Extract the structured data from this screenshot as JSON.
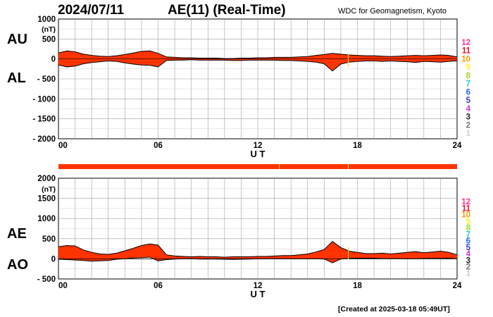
{
  "header": {
    "date": "2024/07/11",
    "title": "AE(11) (Real-Time)",
    "source": "WDC for Geomagnetism, Kyoto"
  },
  "footer": {
    "created": "[Created at 2025-03-18 05:49UT]"
  },
  "colors": {
    "fill": "#ff3300",
    "outline": "#000000",
    "grid": "#a0a0a0",
    "partial": "#ffcc33"
  },
  "station_count_scale": {
    "labels": [
      "12",
      "11",
      "10",
      "9",
      "8",
      "7",
      "6",
      "5",
      "4",
      "3",
      "2",
      "1"
    ],
    "colors": [
      "#ff3399",
      "#ee1133",
      "#ff9900",
      "#ffee33",
      "#99dd22",
      "#22cccc",
      "#2266ff",
      "#3333cc",
      "#cc33cc",
      "#222222",
      "#777777",
      "#cccccc"
    ]
  },
  "chart_data": [
    {
      "type": "area",
      "series_labels": [
        "AU",
        "AL"
      ],
      "xlabel": "U T",
      "ylabel_unit": "(nT)",
      "x_ticks": [
        "00",
        "06",
        "12",
        "18",
        "24"
      ],
      "y_ticks": [
        "1000",
        "500",
        "0",
        "- 500",
        "- 1000",
        "- 1500",
        "- 2000"
      ],
      "xlim": [
        0,
        24
      ],
      "ylim": [
        -2000,
        1000
      ],
      "grid": true,
      "hours": [
        0,
        0.5,
        1,
        1.5,
        2,
        2.5,
        3,
        3.5,
        4,
        4.5,
        5,
        5.5,
        6,
        6.5,
        7,
        7.5,
        8,
        8.5,
        9,
        9.5,
        10,
        10.5,
        11,
        11.5,
        12,
        12.5,
        13,
        13.5,
        14,
        14.5,
        15,
        15.5,
        16,
        16.5,
        17,
        17.5,
        18,
        18.5,
        19,
        19.5,
        20,
        20.5,
        21,
        21.5,
        22,
        22.5,
        23,
        23.5,
        24
      ],
      "upper": [
        150,
        200,
        180,
        120,
        90,
        70,
        60,
        80,
        110,
        150,
        190,
        200,
        140,
        50,
        40,
        30,
        30,
        20,
        20,
        20,
        10,
        10,
        20,
        20,
        30,
        30,
        40,
        40,
        40,
        50,
        60,
        90,
        110,
        140,
        120,
        100,
        90,
        80,
        80,
        70,
        60,
        70,
        80,
        90,
        80,
        90,
        100,
        90,
        50
      ],
      "lower": [
        -150,
        -200,
        -180,
        -120,
        -90,
        -70,
        -50,
        -60,
        -100,
        -130,
        -150,
        -160,
        -200,
        -40,
        -30,
        -30,
        -20,
        -30,
        -30,
        -30,
        -30,
        -40,
        -40,
        -30,
        -30,
        -30,
        -30,
        -40,
        -40,
        -50,
        -60,
        -80,
        -120,
        -300,
        -130,
        -80,
        -60,
        -50,
        -50,
        -60,
        -50,
        -60,
        -70,
        -90,
        -60,
        -70,
        -80,
        -60,
        -50
      ]
    },
    {
      "type": "area",
      "series_labels": [
        "AE",
        "AO"
      ],
      "xlabel": "U T",
      "ylabel_unit": "(nT)",
      "x_ticks": [
        "00",
        "06",
        "12",
        "18",
        "24"
      ],
      "y_ticks": [
        "2000",
        "1500",
        "1000",
        "500",
        "0",
        "- 500"
      ],
      "xlim": [
        0,
        24
      ],
      "ylim": [
        -500,
        2000
      ],
      "grid": true,
      "hours": [
        0,
        0.5,
        1,
        1.5,
        2,
        2.5,
        3,
        3.5,
        4,
        4.5,
        5,
        5.5,
        6,
        6.5,
        7,
        7.5,
        8,
        8.5,
        9,
        9.5,
        10,
        10.5,
        11,
        11.5,
        12,
        12.5,
        13,
        13.5,
        14,
        14.5,
        15,
        15.5,
        16,
        16.5,
        17,
        17.5,
        18,
        18.5,
        19,
        19.5,
        20,
        20.5,
        21,
        21.5,
        22,
        22.5,
        23,
        23.5,
        24
      ],
      "upper": [
        300,
        330,
        320,
        220,
        160,
        120,
        110,
        140,
        200,
        260,
        330,
        370,
        340,
        100,
        70,
        60,
        50,
        60,
        50,
        50,
        40,
        50,
        50,
        50,
        60,
        60,
        70,
        80,
        80,
        100,
        120,
        170,
        230,
        430,
        280,
        190,
        160,
        130,
        130,
        140,
        120,
        140,
        160,
        180,
        150,
        170,
        190,
        160,
        100
      ],
      "lower": [
        -10,
        -20,
        -30,
        -40,
        -60,
        -50,
        -40,
        -10,
        0,
        20,
        30,
        40,
        -50,
        -20,
        -5,
        0,
        5,
        -5,
        -5,
        -5,
        -10,
        -15,
        -10,
        -5,
        0,
        0,
        5,
        0,
        0,
        0,
        0,
        5,
        -5,
        -100,
        -5,
        10,
        15,
        15,
        15,
        5,
        5,
        5,
        5,
        0,
        10,
        10,
        10,
        15,
        0
      ]
    }
  ]
}
